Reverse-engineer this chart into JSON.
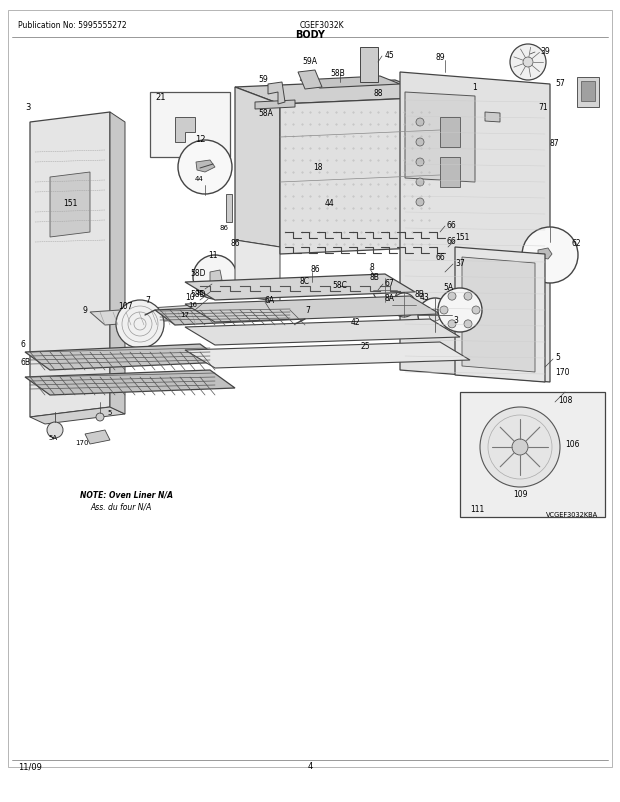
{
  "title": "BODY",
  "pub_no": "Publication No: 5995555272",
  "model": "CGEF3032K",
  "date": "11/09",
  "page": "4",
  "watermark": "VCGEF3032KBA",
  "note_line1": "NOTE: Oven Liner N/A",
  "note_line2": "Ass. du four N/A",
  "bg_color": "#ffffff",
  "border_color": "#000000",
  "text_color": "#000000",
  "fig_width": 6.2,
  "fig_height": 8.03,
  "dpi": 100
}
